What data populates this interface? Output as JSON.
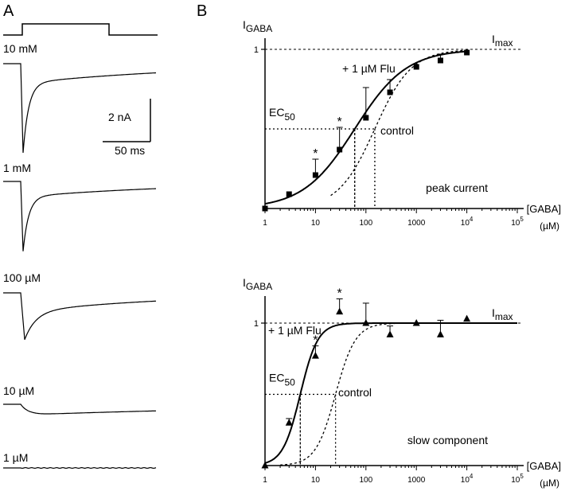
{
  "panel_a": {
    "label": "A",
    "traces": [
      {
        "label": "10 mM",
        "type": "fast",
        "depth": 1.0
      },
      {
        "label": "1 mM",
        "type": "fast",
        "depth": 0.86
      },
      {
        "label": "100 µM",
        "type": "medium",
        "depth": 0.6
      },
      {
        "label": "10 µM",
        "type": "slow",
        "depth": 0.3
      },
      {
        "label": "1 µM",
        "type": "flat",
        "depth": 0.0
      }
    ],
    "scale_bar": {
      "current": "2 nA",
      "time": "50 ms"
    }
  },
  "panel_b_label": "B",
  "chart_data": [
    {
      "type": "scatter",
      "ylabel": "I",
      "ylabel_sub": "GABA",
      "xlabel": "[GABA]",
      "xunit": "(µM)",
      "xscale": "log",
      "xlim": [
        1,
        100000
      ],
      "ylim": [
        0,
        1
      ],
      "xtick_labels": [
        "1",
        "10",
        "100",
        "1000",
        "10",
        "10"
      ],
      "xtick_sups": [
        "",
        "",
        "",
        "",
        "4",
        "5"
      ],
      "ytick_labels": [
        "1"
      ],
      "imax_label": "I",
      "imax_sub": "max",
      "ec50_label": "EC",
      "ec50_sub": "50",
      "condition_label": "peak current",
      "series": [
        {
          "name": "+ 1 µM Flu",
          "marker": "square",
          "x": [
            1,
            3,
            10,
            30,
            100,
            300,
            1000,
            3000,
            10000
          ],
          "y": [
            0.0,
            0.09,
            0.21,
            0.37,
            0.57,
            0.73,
            0.89,
            0.93,
            0.98
          ],
          "err": [
            0,
            0,
            0.1,
            0.14,
            0.19,
            0.08,
            0,
            0.04,
            0
          ],
          "star": [
            false,
            false,
            true,
            true,
            false,
            false,
            false,
            false,
            false
          ]
        },
        {
          "name": "control",
          "marker": "none"
        }
      ],
      "fits": {
        "flu": {
          "ec50": 60,
          "hill": 0.85
        },
        "control": {
          "ec50": 150,
          "hill": 1.2
        }
      }
    },
    {
      "type": "scatter",
      "ylabel": "I",
      "ylabel_sub": "GABA",
      "xlabel": "[GABA]",
      "xunit": "(µM)",
      "xscale": "log",
      "xlim": [
        1,
        100000
      ],
      "ylim": [
        0,
        1.15
      ],
      "xtick_labels": [
        "1",
        "10",
        "100",
        "1000",
        "10",
        "10"
      ],
      "xtick_sups": [
        "",
        "",
        "",
        "",
        "4",
        "5"
      ],
      "ytick_labels": [
        "1"
      ],
      "imax_label": "I",
      "imax_sub": "max",
      "ec50_label": "EC",
      "ec50_sub": "50",
      "condition_label": "slow component",
      "series": [
        {
          "name": "+ 1 µM Flu",
          "marker": "triangle",
          "x": [
            1,
            3,
            10,
            30,
            100,
            300,
            1000,
            3000,
            10000
          ],
          "y": [
            0.0,
            0.3,
            0.77,
            1.08,
            1.0,
            0.92,
            1.0,
            0.92,
            1.03
          ],
          "err": [
            0,
            0.03,
            0.07,
            0.09,
            0.14,
            0.06,
            0,
            0.1,
            0
          ],
          "star": [
            false,
            false,
            true,
            true,
            false,
            false,
            false,
            false,
            false
          ]
        },
        {
          "name": "control",
          "marker": "none"
        }
      ],
      "fits": {
        "flu": {
          "ec50": 5,
          "hill": 2.5
        },
        "control": {
          "ec50": 25,
          "hill": 2.2
        }
      }
    }
  ]
}
